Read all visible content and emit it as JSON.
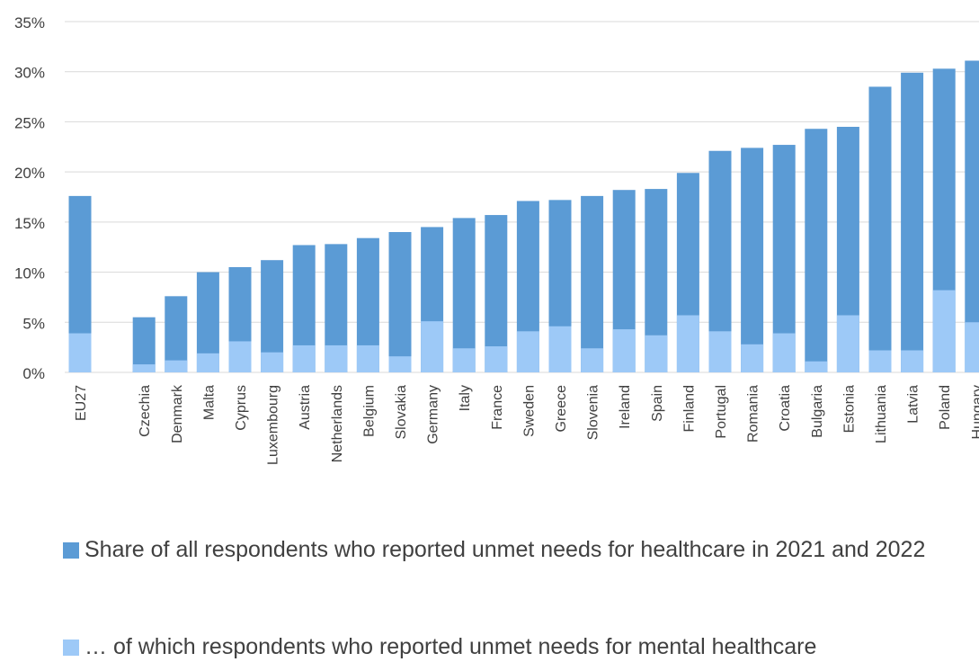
{
  "chart_data": {
    "type": "bar",
    "stacked": false,
    "overlay": true,
    "categories": [
      "EU27",
      "",
      "Czechia",
      "Denmark",
      "Malta",
      "Cyprus",
      "Luxembourg",
      "Austria",
      "Netherlands",
      "Belgium",
      "Slovakia",
      "Germany",
      "Italy",
      "France",
      "Sweden",
      "Greece",
      "Slovenia",
      "Ireland",
      "Spain",
      "Finland",
      "Portugal",
      "Romania",
      "Croatia",
      "Bulgaria",
      "Estonia",
      "Lithuania",
      "Latvia",
      "Poland",
      "Hungary"
    ],
    "series": [
      {
        "name": "Share of all respondents who reported unmet needs for healthcare in 2021 and 2022",
        "color": "#5b9bd5",
        "values": [
          17.6,
          null,
          5.5,
          7.6,
          10.0,
          10.5,
          11.2,
          12.7,
          12.8,
          13.4,
          14.0,
          14.5,
          15.4,
          15.7,
          17.1,
          17.2,
          17.6,
          18.2,
          18.3,
          19.9,
          22.1,
          22.4,
          22.7,
          24.3,
          24.5,
          28.5,
          29.9,
          30.3,
          31.1
        ]
      },
      {
        "name": "… of which respondents who reported unmet needs for mental healthcare",
        "color": "#9dc9f7",
        "values": [
          3.9,
          null,
          0.8,
          1.2,
          1.9,
          3.1,
          2.0,
          2.7,
          2.7,
          2.7,
          1.6,
          5.1,
          2.4,
          2.6,
          4.1,
          4.6,
          2.4,
          4.3,
          3.7,
          5.7,
          4.1,
          2.8,
          3.9,
          1.1,
          5.7,
          2.2,
          2.2,
          8.2,
          5.0
        ]
      }
    ],
    "ylim": [
      0,
      35
    ],
    "yticks": [
      0,
      5,
      10,
      15,
      20,
      25,
      30,
      35
    ],
    "ytick_labels": [
      "0%",
      "5%",
      "10%",
      "15%",
      "20%",
      "25%",
      "30%",
      "35%"
    ],
    "grid": true,
    "legend_position": "bottom-left",
    "title": "",
    "xlabel": "",
    "ylabel": ""
  }
}
